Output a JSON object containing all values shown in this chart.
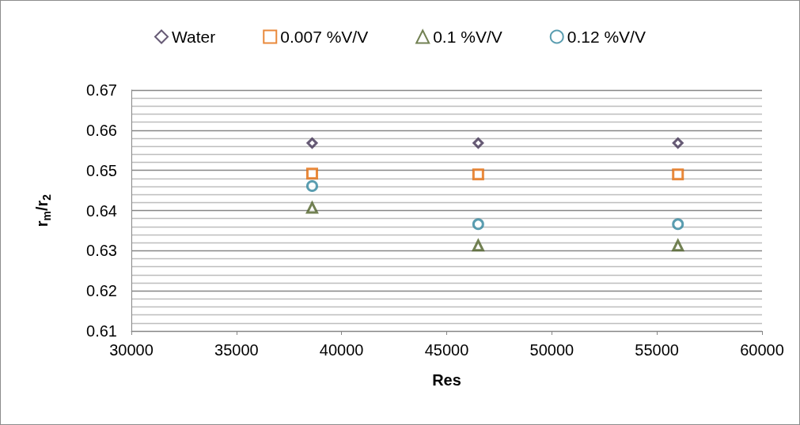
{
  "chart_data": {
    "type": "scatter",
    "xlabel": "Res",
    "ylabel": "r$_{m}$/r$_{2}$",
    "x": [
      38600,
      46500,
      56000
    ],
    "series": [
      {
        "name": "Water",
        "color": "#403152",
        "marker": "diamond",
        "values": [
          0.6568,
          0.6568,
          0.6568
        ]
      },
      {
        "name": "0.007 %V/V",
        "color": "#e46c0a",
        "marker": "square",
        "values": [
          0.6492,
          0.649,
          0.649
        ]
      },
      {
        "name": "0.1 %V/V",
        "color": "#4f6228",
        "marker": "triangle",
        "values": [
          0.6407,
          0.6313,
          0.6313
        ]
      },
      {
        "name": "0.12 %V/V",
        "color": "#31859c",
        "marker": "circle",
        "values": [
          0.6461,
          0.6366,
          0.6366
        ]
      }
    ],
    "xlim": [
      30000,
      60000
    ],
    "xticks": [
      30000,
      35000,
      40000,
      45000,
      50000,
      55000,
      60000
    ],
    "ylim": [
      0.61,
      0.67
    ],
    "yticks": [
      0.61,
      0.62,
      0.63,
      0.64,
      0.65,
      0.66,
      0.67
    ],
    "grid": "y",
    "legend": "top"
  }
}
